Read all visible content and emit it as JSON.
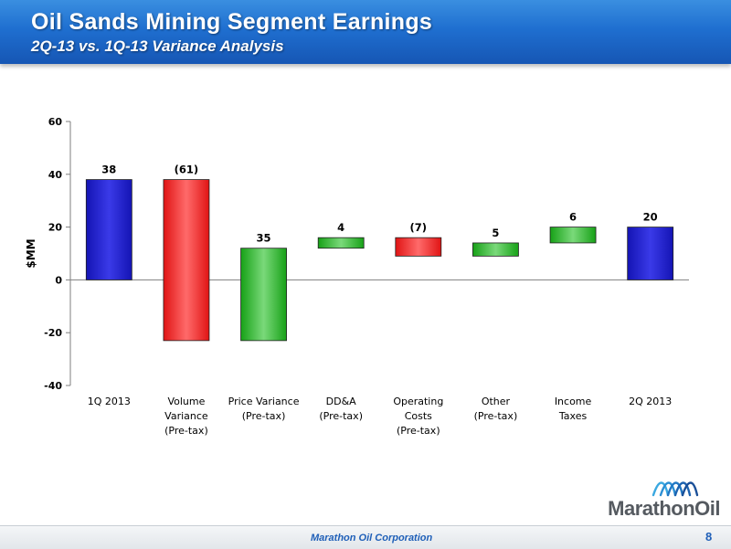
{
  "slide": {
    "title": "Oil Sands Mining Segment Earnings",
    "subtitle": "2Q-13 vs. 1Q-13 Variance Analysis"
  },
  "chart_data": {
    "type": "bar",
    "subtype": "waterfall",
    "ylabel": "$MM",
    "ylim": [
      -40,
      60
    ],
    "yticks": [
      60,
      40,
      20,
      0,
      -20,
      -40
    ],
    "grid": false,
    "categories": [
      [
        "1Q 2013"
      ],
      [
        "Volume",
        "Variance",
        "(Pre-tax)"
      ],
      [
        "Price Variance",
        "(Pre-tax)"
      ],
      [
        "DD&A",
        "(Pre-tax)"
      ],
      [
        "Operating",
        "Costs",
        "(Pre-tax)"
      ],
      [
        "Other",
        "(Pre-tax)"
      ],
      [
        "Income",
        "Taxes"
      ],
      [
        "2Q 2013"
      ]
    ],
    "bars": [
      {
        "start": 0,
        "end": 38,
        "label": "38",
        "kind": "total"
      },
      {
        "start": 38,
        "end": -23,
        "label": "(61)",
        "kind": "decrease"
      },
      {
        "start": -23,
        "end": 12,
        "label": "35",
        "kind": "increase"
      },
      {
        "start": 12,
        "end": 16,
        "label": "4",
        "kind": "increase"
      },
      {
        "start": 16,
        "end": 9,
        "label": "(7)",
        "kind": "decrease"
      },
      {
        "start": 9,
        "end": 14,
        "label": "5",
        "kind": "increase"
      },
      {
        "start": 14,
        "end": 20,
        "label": "6",
        "kind": "increase"
      },
      {
        "start": 0,
        "end": 20,
        "label": "20",
        "kind": "total"
      }
    ],
    "colors": {
      "total": "#1414b4",
      "increase": "#17a117",
      "decrease": "#e01414"
    }
  },
  "logo": {
    "text": "MarathonOil"
  },
  "footer": {
    "company": "Marathon Oil Corporation",
    "page_number": "8"
  }
}
